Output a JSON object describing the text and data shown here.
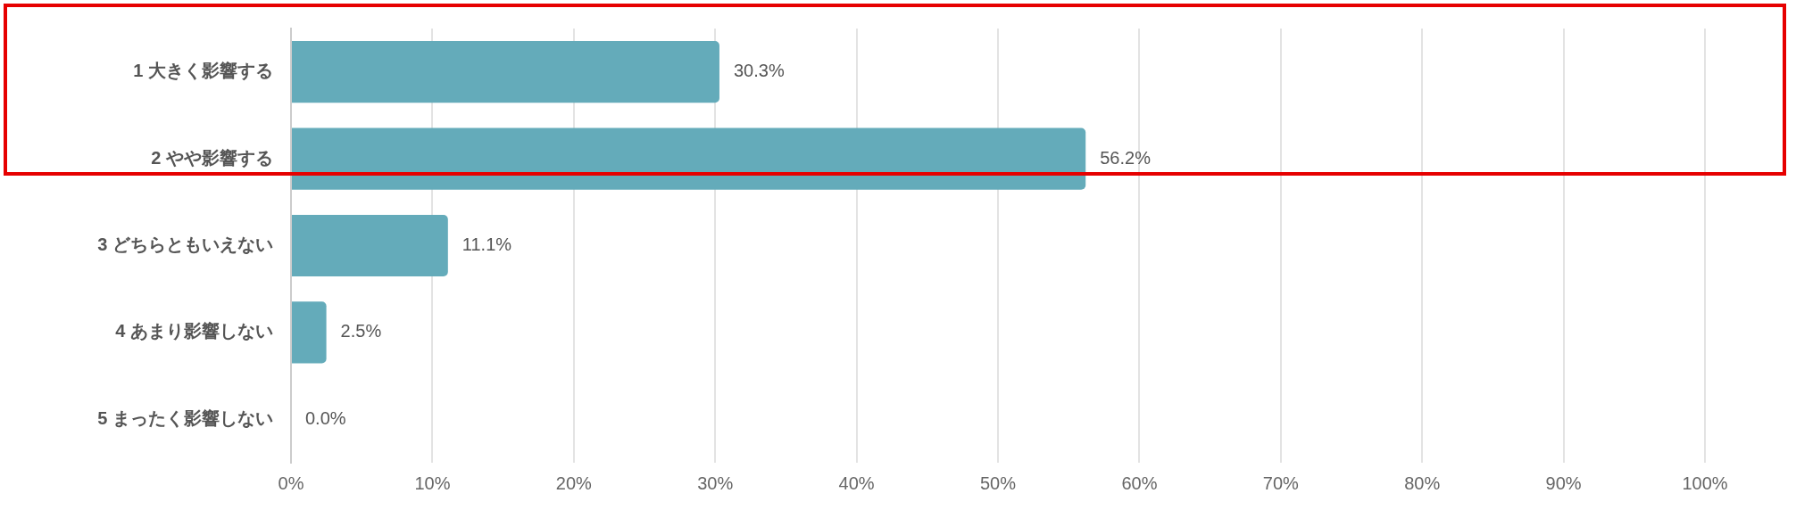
{
  "chart_data": {
    "type": "bar",
    "orientation": "horizontal",
    "categories": [
      "1 大きく影響する",
      "2 やや影響する",
      "3 どちらともいえない",
      "4 あまり影響しない",
      "5 まったく影響しない"
    ],
    "values": [
      30.3,
      56.2,
      11.1,
      2.5,
      0.0
    ],
    "value_labels": [
      "30.3%",
      "56.2%",
      "11.1%",
      "2.5%",
      "0.0%"
    ],
    "color": "#64abba",
    "xlim": [
      0,
      100
    ],
    "xticks": [
      {
        "value": 0,
        "label": "0%"
      },
      {
        "value": 10,
        "label": "10%"
      },
      {
        "value": 20,
        "label": "20%"
      },
      {
        "value": 30,
        "label": "30%"
      },
      {
        "value": 40,
        "label": "40%"
      },
      {
        "value": 50,
        "label": "50%"
      },
      {
        "value": 60,
        "label": "60%"
      },
      {
        "value": 70,
        "label": "70%"
      },
      {
        "value": 80,
        "label": "80%"
      },
      {
        "value": 90,
        "label": "90%"
      },
      {
        "value": 100,
        "label": "100%"
      }
    ],
    "grid": "x",
    "legend": false
  }
}
